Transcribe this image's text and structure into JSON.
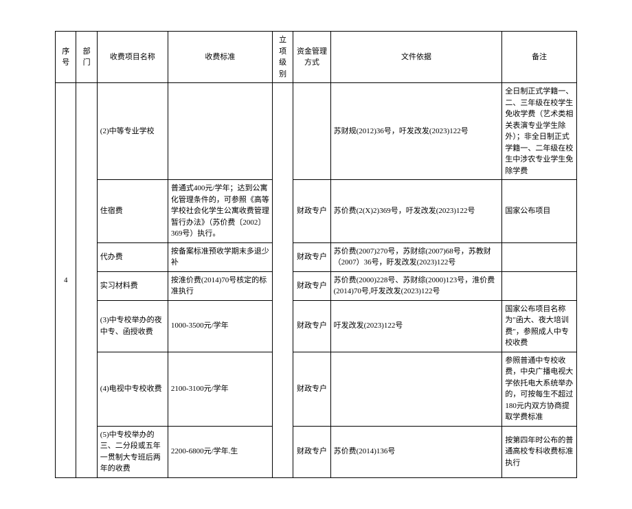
{
  "headers": {
    "seq": "序号",
    "dept": "部门",
    "item": "收费项目名称",
    "std": "收费标准",
    "level": "立项级别",
    "fund": "资金管理方式",
    "basis": "文件依据",
    "remark": "备注"
  },
  "seq_value": "4",
  "rows": [
    {
      "item": "(2)中等专业学校",
      "std": "",
      "fund": "",
      "basis": "苏财规(2012)36号，吁发改发(2023)122号",
      "remark": "全日制正式学籍一、二、三年级在校学生免收学费（艺术类相关表演专业学生除外）；非全日制正式学籍一、二年级在校生中涉农专业学生免除学费"
    },
    {
      "item": "住宿费",
      "std": "普通式400元/学年；达到公寓化管理条件的，可参照《高等学校社会化学生公寓收费管理暂行办法》（苏价费〔2002〕369号）执行。",
      "fund": "财政专户",
      "basis": "苏价费(2(X)2)369号，吁发改发(2023)122号",
      "remark": "国家公布项目"
    },
    {
      "item": "代办费",
      "std": "按备案标准预收学期末多退少补",
      "fund": "财政专户",
      "basis": "苏价费(2007)270号，苏财综(2007)68号，苏教财（2007）36号，盱发改发(2023)122号",
      "remark": ""
    },
    {
      "item": "实习材料费",
      "std": "按淮价费(2014)70号核定的标准执行",
      "fund": "财政专户",
      "basis": "苏价费(2000)228号、苏财综(2000)123号，淮价费(2014)70号,吁发改发(2023)122号",
      "remark": ""
    },
    {
      "item": "(3)中专校举办的夜中专、函授收费",
      "std": "1000-3500元/学年",
      "fund": "财政专户",
      "basis": "吁发改发(2023)122号",
      "remark": "国家公布项目名称为\"函大、夜大培训费\"，参照成人中专校收费"
    },
    {
      "item": "(4)电视中专校收费",
      "std": "2100-3100元/学年",
      "fund": "财政专户",
      "basis": "",
      "remark": "参照普通中专校收费，中央广播电视大学依托电大系统举办的，可按每生不超过180元内双方协商提取学费标准"
    },
    {
      "item": "(5)中专校举办的三、二分段或五年一贯制大专班后两年的收费",
      "std": "2200-6800元/学年.生",
      "fund": "财政专户",
      "basis": "苏价费(2014)136号",
      "remark": "按第四年时公布的普通高校专科收费标准执行"
    }
  ]
}
